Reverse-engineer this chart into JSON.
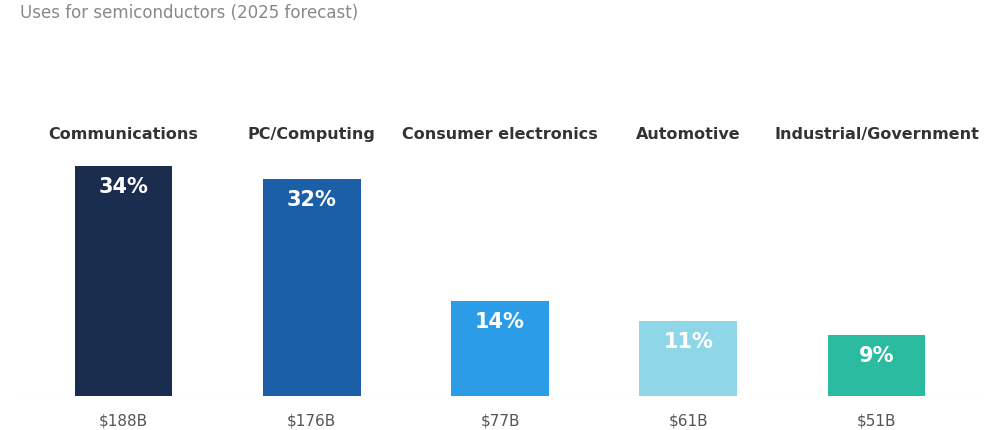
{
  "title": "Uses for semiconductors (2025 forecast)",
  "categories": [
    "Communications",
    "PC/Computing",
    "Consumer electronics",
    "Automotive",
    "Industrial/Government"
  ],
  "values": [
    34,
    32,
    14,
    11,
    9
  ],
  "dollar_labels": [
    "$188B",
    "$176B",
    "$77B",
    "$61B",
    "$51B"
  ],
  "pct_labels": [
    "34%",
    "32%",
    "14%",
    "11%",
    "9%"
  ],
  "bar_colors": [
    "#1a2d4f",
    "#1a5fa8",
    "#2b9de8",
    "#8fd6e8",
    "#2abba0"
  ],
  "background_color": "#ffffff",
  "title_color": "#888888",
  "category_color": "#333333",
  "dollar_color": "#555555",
  "bar_width": 0.52,
  "title_fontsize": 12,
  "category_fontsize": 11.5,
  "pct_fontsize": 15,
  "dollar_fontsize": 11,
  "ylim": [
    0,
    37
  ],
  "bar_positions": [
    0,
    1,
    2,
    3,
    4
  ]
}
